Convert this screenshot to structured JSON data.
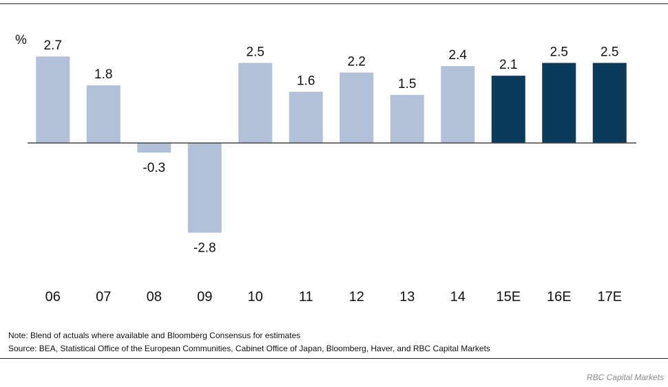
{
  "chart_data": {
    "type": "bar",
    "unit_label": "%",
    "categories": [
      "06",
      "07",
      "08",
      "09",
      "10",
      "11",
      "12",
      "13",
      "14",
      "15E",
      "16E",
      "17E"
    ],
    "values": [
      2.7,
      1.8,
      -0.3,
      -2.8,
      2.5,
      1.6,
      2.2,
      1.5,
      2.4,
      2.1,
      2.5,
      2.5
    ],
    "value_labels": [
      "2.7",
      "1.8",
      "-0.3",
      "-2.8",
      "2.5",
      "1.6",
      "2.2",
      "1.5",
      "2.4",
      "2.1",
      "2.5",
      "2.5"
    ],
    "estimate": [
      false,
      false,
      false,
      false,
      false,
      false,
      false,
      false,
      false,
      true,
      true,
      true
    ],
    "colors": {
      "actual": "#b3c1d8",
      "estimate": "#0b3a5b",
      "baseline": "#444444"
    },
    "grid": false,
    "legend": "none"
  },
  "footer": {
    "note": "Note: Blend of actuals where available and Bloomberg Consensus for estimates",
    "source": "Source: BEA, Statistical Office of the European Communities, Cabinet Office of Japan, Bloomberg, Haver, and RBC Capital Markets",
    "credit": "RBC Capital Markets"
  }
}
